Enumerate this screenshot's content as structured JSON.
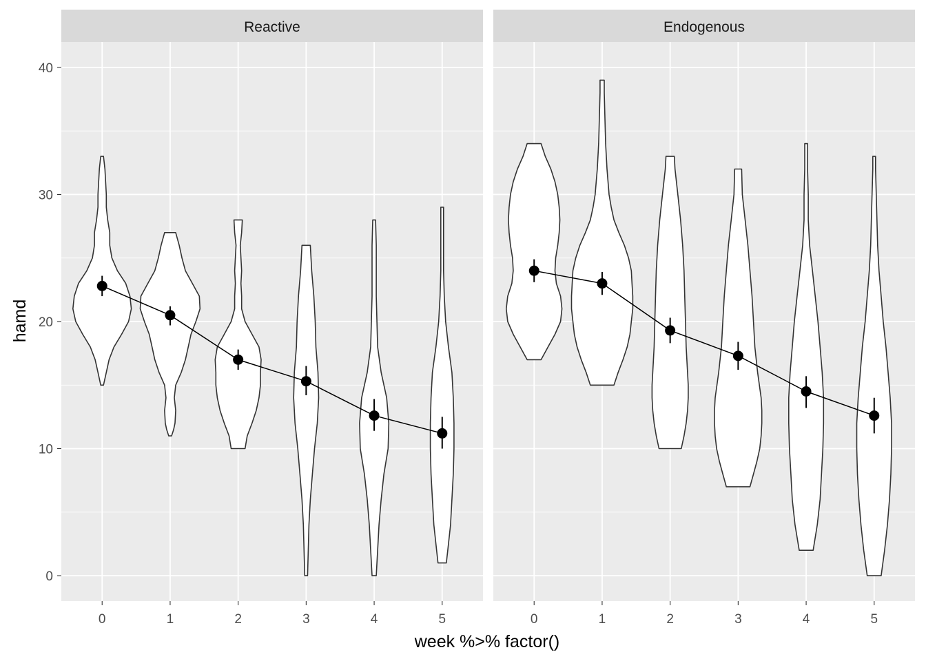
{
  "chart_data": {
    "type": "violin",
    "xlabel": "week %>% factor()",
    "ylabel": "hamd",
    "categories": [
      "0",
      "1",
      "2",
      "3",
      "4",
      "5"
    ],
    "ylim": [
      -2,
      42
    ],
    "yticks": [
      0,
      10,
      20,
      30,
      40
    ],
    "grid": true,
    "colors": {
      "panel_bg": "#ebebeb",
      "strip_bg": "#d9d9d9",
      "grid": "#ffffff",
      "violin_fill": "#ffffff",
      "violin_stroke": "#333333",
      "point": "#000000"
    },
    "panels": [
      {
        "name": "Reactive",
        "mean_line": [
          22.8,
          20.5,
          17.0,
          15.3,
          12.6,
          11.2
        ],
        "error_bars": [
          [
            22.0,
            23.6
          ],
          [
            19.7,
            21.2
          ],
          [
            16.2,
            17.8
          ],
          [
            14.2,
            16.5
          ],
          [
            11.4,
            13.9
          ],
          [
            10.0,
            12.5
          ]
        ],
        "violins": [
          {
            "x": "0",
            "profile": [
              [
                15,
                0.02
              ],
              [
                16,
                0.06
              ],
              [
                17,
                0.1
              ],
              [
                18,
                0.17
              ],
              [
                19,
                0.28
              ],
              [
                20,
                0.38
              ],
              [
                21,
                0.42
              ],
              [
                22,
                0.4
              ],
              [
                23,
                0.34
              ],
              [
                24,
                0.22
              ],
              [
                25,
                0.14
              ],
              [
                26,
                0.11
              ],
              [
                27,
                0.11
              ],
              [
                28,
                0.08
              ],
              [
                29,
                0.06
              ],
              [
                30,
                0.06
              ],
              [
                31,
                0.05
              ],
              [
                32,
                0.04
              ],
              [
                33,
                0.02
              ]
            ]
          },
          {
            "x": "1",
            "profile": [
              [
                11,
                0.02
              ],
              [
                11.5,
                0.05
              ],
              [
                12,
                0.07
              ],
              [
                13,
                0.08
              ],
              [
                14,
                0.06
              ],
              [
                15,
                0.08
              ],
              [
                16,
                0.16
              ],
              [
                17,
                0.22
              ],
              [
                18,
                0.26
              ],
              [
                19,
                0.3
              ],
              [
                20,
                0.37
              ],
              [
                21,
                0.43
              ],
              [
                22,
                0.42
              ],
              [
                23,
                0.32
              ],
              [
                24,
                0.22
              ],
              [
                25,
                0.17
              ],
              [
                26,
                0.13
              ],
              [
                27,
                0.08
              ]
            ]
          },
          {
            "x": "2",
            "profile": [
              [
                10,
                0.1
              ],
              [
                11,
                0.13
              ],
              [
                12,
                0.2
              ],
              [
                13,
                0.26
              ],
              [
                14,
                0.3
              ],
              [
                15,
                0.32
              ],
              [
                16,
                0.32
              ],
              [
                17,
                0.33
              ],
              [
                18,
                0.3
              ],
              [
                19,
                0.2
              ],
              [
                20,
                0.1
              ],
              [
                21,
                0.05
              ],
              [
                22,
                0.05
              ],
              [
                23,
                0.04
              ],
              [
                24,
                0.05
              ],
              [
                25,
                0.04
              ],
              [
                26,
                0.03
              ],
              [
                27,
                0.05
              ],
              [
                28,
                0.06
              ]
            ]
          },
          {
            "x": "3",
            "profile": [
              [
                0,
                0.02
              ],
              [
                2,
                0.03
              ],
              [
                4,
                0.04
              ],
              [
                6,
                0.06
              ],
              [
                8,
                0.09
              ],
              [
                10,
                0.12
              ],
              [
                12,
                0.16
              ],
              [
                14,
                0.18
              ],
              [
                16,
                0.17
              ],
              [
                18,
                0.14
              ],
              [
                20,
                0.13
              ],
              [
                22,
                0.11
              ],
              [
                24,
                0.08
              ],
              [
                26,
                0.06
              ]
            ]
          },
          {
            "x": "4",
            "profile": [
              [
                0,
                0.03
              ],
              [
                2,
                0.05
              ],
              [
                4,
                0.07
              ],
              [
                6,
                0.1
              ],
              [
                8,
                0.14
              ],
              [
                10,
                0.2
              ],
              [
                12,
                0.21
              ],
              [
                14,
                0.18
              ],
              [
                16,
                0.1
              ],
              [
                18,
                0.05
              ],
              [
                20,
                0.04
              ],
              [
                22,
                0.03
              ],
              [
                24,
                0.03
              ],
              [
                26,
                0.03
              ],
              [
                28,
                0.02
              ]
            ]
          },
          {
            "x": "5",
            "profile": [
              [
                1,
                0.06
              ],
              [
                2,
                0.08
              ],
              [
                4,
                0.12
              ],
              [
                6,
                0.14
              ],
              [
                8,
                0.16
              ],
              [
                10,
                0.17
              ],
              [
                12,
                0.17
              ],
              [
                14,
                0.16
              ],
              [
                16,
                0.14
              ],
              [
                18,
                0.09
              ],
              [
                20,
                0.05
              ],
              [
                22,
                0.03
              ],
              [
                24,
                0.02
              ],
              [
                26,
                0.02
              ],
              [
                28,
                0.02
              ],
              [
                29,
                0.02
              ]
            ]
          }
        ]
      },
      {
        "name": "Endogenous",
        "mean_line": [
          24.0,
          23.0,
          19.3,
          17.3,
          14.5,
          12.6
        ],
        "error_bars": [
          [
            23.1,
            24.9
          ],
          [
            22.1,
            23.9
          ],
          [
            18.3,
            20.3
          ],
          [
            16.2,
            18.4
          ],
          [
            13.2,
            15.7
          ],
          [
            11.2,
            14.0
          ]
        ],
        "violins": [
          {
            "x": "0",
            "profile": [
              [
                17,
                0.1
              ],
              [
                18,
                0.2
              ],
              [
                19,
                0.3
              ],
              [
                20,
                0.38
              ],
              [
                21,
                0.4
              ],
              [
                22,
                0.38
              ],
              [
                23,
                0.32
              ],
              [
                24,
                0.3
              ],
              [
                25,
                0.31
              ],
              [
                26,
                0.34
              ],
              [
                27,
                0.36
              ],
              [
                28,
                0.37
              ],
              [
                29,
                0.36
              ],
              [
                30,
                0.34
              ],
              [
                31,
                0.3
              ],
              [
                32,
                0.24
              ],
              [
                33,
                0.16
              ],
              [
                34,
                0.1
              ]
            ]
          },
          {
            "x": "1",
            "profile": [
              [
                15,
                0.17
              ],
              [
                16,
                0.23
              ],
              [
                17,
                0.3
              ],
              [
                18,
                0.36
              ],
              [
                19,
                0.4
              ],
              [
                20,
                0.42
              ],
              [
                21,
                0.44
              ],
              [
                22,
                0.44
              ],
              [
                23,
                0.43
              ],
              [
                24,
                0.42
              ],
              [
                25,
                0.38
              ],
              [
                26,
                0.32
              ],
              [
                27,
                0.24
              ],
              [
                28,
                0.17
              ],
              [
                29,
                0.13
              ],
              [
                30,
                0.1
              ],
              [
                32,
                0.07
              ],
              [
                34,
                0.05
              ],
              [
                36,
                0.04
              ],
              [
                38,
                0.03
              ],
              [
                39,
                0.03
              ]
            ]
          },
          {
            "x": "2",
            "profile": [
              [
                10,
                0.16
              ],
              [
                11,
                0.2
              ],
              [
                12,
                0.23
              ],
              [
                13,
                0.25
              ],
              [
                14,
                0.26
              ],
              [
                15,
                0.26
              ],
              [
                16,
                0.25
              ],
              [
                18,
                0.23
              ],
              [
                20,
                0.22
              ],
              [
                22,
                0.21
              ],
              [
                24,
                0.2
              ],
              [
                26,
                0.18
              ],
              [
                28,
                0.15
              ],
              [
                30,
                0.11
              ],
              [
                32,
                0.07
              ],
              [
                33,
                0.06
              ]
            ]
          },
          {
            "x": "3",
            "profile": [
              [
                7,
                0.17
              ],
              [
                8,
                0.22
              ],
              [
                9,
                0.27
              ],
              [
                10,
                0.31
              ],
              [
                11,
                0.33
              ],
              [
                12,
                0.34
              ],
              [
                13,
                0.34
              ],
              [
                14,
                0.33
              ],
              [
                16,
                0.28
              ],
              [
                18,
                0.24
              ],
              [
                20,
                0.22
              ],
              [
                22,
                0.2
              ],
              [
                24,
                0.17
              ],
              [
                26,
                0.14
              ],
              [
                28,
                0.1
              ],
              [
                30,
                0.06
              ],
              [
                32,
                0.05
              ]
            ]
          },
          {
            "x": "4",
            "profile": [
              [
                2,
                0.1
              ],
              [
                4,
                0.16
              ],
              [
                6,
                0.2
              ],
              [
                8,
                0.22
              ],
              [
                10,
                0.24
              ],
              [
                12,
                0.25
              ],
              [
                14,
                0.25
              ],
              [
                16,
                0.23
              ],
              [
                18,
                0.2
              ],
              [
                20,
                0.17
              ],
              [
                22,
                0.13
              ],
              [
                24,
                0.09
              ],
              [
                26,
                0.05
              ],
              [
                28,
                0.03
              ],
              [
                30,
                0.03
              ],
              [
                32,
                0.02
              ],
              [
                34,
                0.02
              ]
            ]
          },
          {
            "x": "5",
            "profile": [
              [
                0,
                0.1
              ],
              [
                2,
                0.15
              ],
              [
                4,
                0.19
              ],
              [
                6,
                0.22
              ],
              [
                8,
                0.24
              ],
              [
                10,
                0.25
              ],
              [
                12,
                0.25
              ],
              [
                14,
                0.23
              ],
              [
                16,
                0.2
              ],
              [
                18,
                0.17
              ],
              [
                20,
                0.13
              ],
              [
                22,
                0.1
              ],
              [
                24,
                0.07
              ],
              [
                26,
                0.05
              ],
              [
                28,
                0.04
              ],
              [
                30,
                0.03
              ],
              [
                32,
                0.02
              ],
              [
                33,
                0.02
              ]
            ]
          }
        ]
      }
    ]
  }
}
